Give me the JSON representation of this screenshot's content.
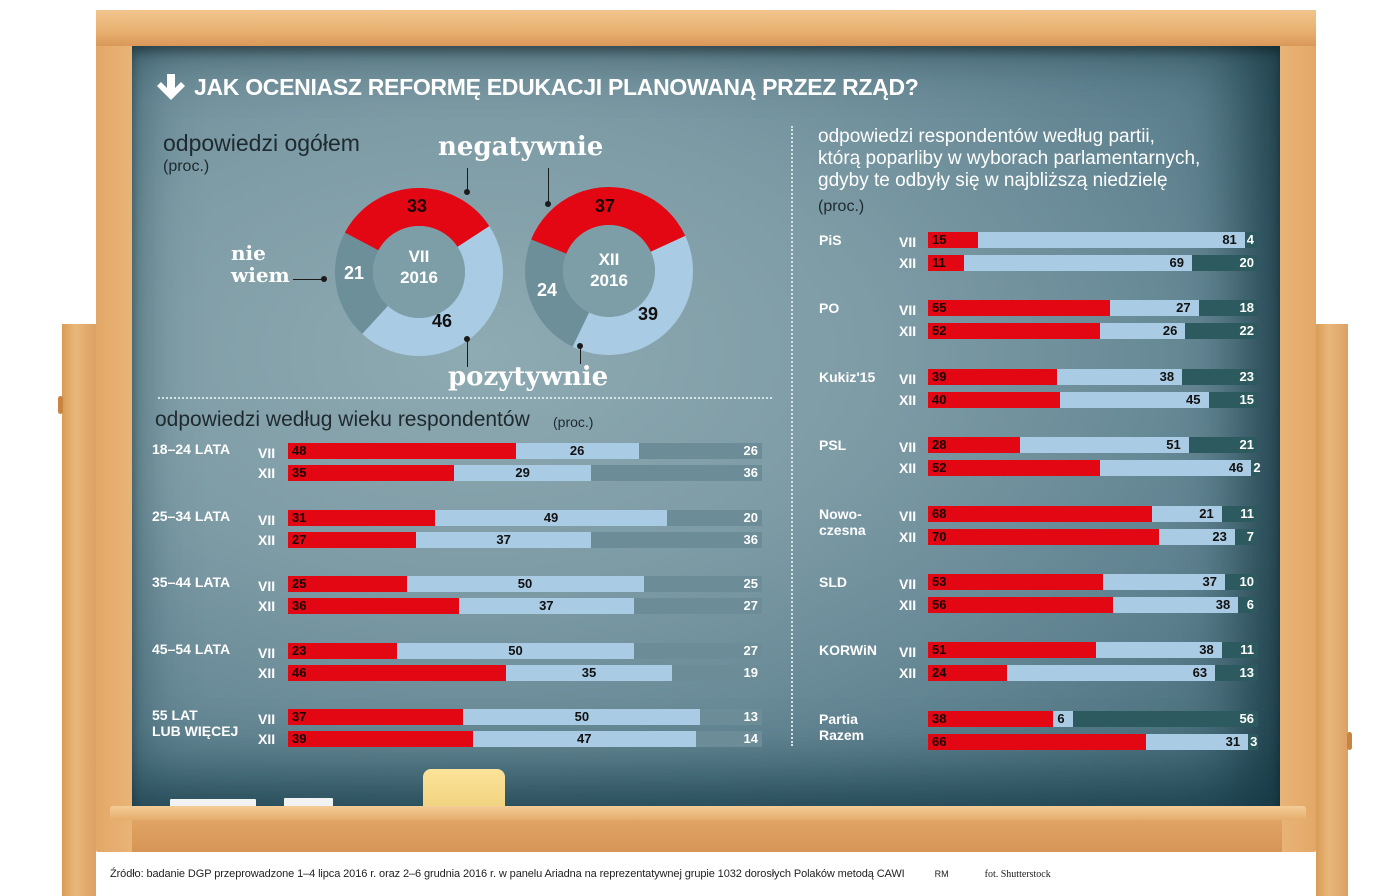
{
  "title": "JAK OCENIASZ REFORMĘ EDUKACJI PLANOWANĄ PRZEZ RZĄD?",
  "overall": {
    "heading": "odpowiedzi ogółem",
    "unit": "(proc.)",
    "callouts": {
      "negative": "negatywnie",
      "positive": "pozytywnie",
      "dont_know_1": "nie",
      "dont_know_2": "wiem"
    },
    "donuts": [
      {
        "period": "VII",
        "year": "2016",
        "negative": "33",
        "positive": "46",
        "dont_know": "21"
      },
      {
        "period": "XII",
        "year": "2016",
        "negative": "37",
        "positive": "39",
        "dont_know": "24"
      }
    ]
  },
  "age": {
    "heading": "odpowiedzi według wieku respondentów",
    "unit": "(proc.)",
    "groups": [
      {
        "label_1": "18–24 LATA",
        "label_2": "",
        "rows": [
          {
            "period": "VII",
            "negative": "48",
            "positive": "26",
            "dont_know": "26"
          },
          {
            "period": "XII",
            "negative": "35",
            "positive": "29",
            "dont_know": "36"
          }
        ]
      },
      {
        "label_1": "25–34 LATA",
        "label_2": "",
        "rows": [
          {
            "period": "VII",
            "negative": "31",
            "positive": "49",
            "dont_know": "20"
          },
          {
            "period": "XII",
            "negative": "27",
            "positive": "37",
            "dont_know": "36"
          }
        ]
      },
      {
        "label_1": "35–44 LATA",
        "label_2": "",
        "rows": [
          {
            "period": "VII",
            "negative": "25",
            "positive": "50",
            "dont_know": "25"
          },
          {
            "period": "XII",
            "negative": "36",
            "positive": "37",
            "dont_know": "27"
          }
        ]
      },
      {
        "label_1": "45–54 LATA",
        "label_2": "",
        "rows": [
          {
            "period": "VII",
            "negative": "23",
            "positive": "50",
            "dont_know": "27"
          },
          {
            "period": "XII",
            "negative": "46",
            "positive": "35",
            "dont_know": "19"
          }
        ]
      },
      {
        "label_1": "55 LAT",
        "label_2": "LUB WIĘCEJ",
        "rows": [
          {
            "period": "VII",
            "negative": "37",
            "positive": "50",
            "dont_know": "13"
          },
          {
            "period": "XII",
            "negative": "39",
            "positive": "47",
            "dont_know": "14"
          }
        ]
      }
    ]
  },
  "party": {
    "heading_1": "odpowiedzi respondentów według partii,",
    "heading_2": "którą poparliby w wyborach parlamentarnych,",
    "heading_3": "gdyby te odbyły się w najbliższą niedzielę",
    "unit": "(proc.)",
    "groups": [
      {
        "label_1": "PiS",
        "label_2": "",
        "rows": [
          {
            "period": "VII",
            "negative": "15",
            "positive": "81",
            "dont_know": "4"
          },
          {
            "period": "XII",
            "negative": "11",
            "positive": "69",
            "dont_know": "20"
          }
        ]
      },
      {
        "label_1": "PO",
        "label_2": "",
        "rows": [
          {
            "period": "VII",
            "negative": "55",
            "positive": "27",
            "dont_know": "18"
          },
          {
            "period": "XII",
            "negative": "52",
            "positive": "26",
            "dont_know": "22"
          }
        ]
      },
      {
        "label_1": "Kukiz'15",
        "label_2": "",
        "rows": [
          {
            "period": "VII",
            "negative": "39",
            "positive": "38",
            "dont_know": "23"
          },
          {
            "period": "XII",
            "negative": "40",
            "positive": "45",
            "dont_know": "15"
          }
        ]
      },
      {
        "label_1": "PSL",
        "label_2": "",
        "rows": [
          {
            "period": "VII",
            "negative": "28",
            "positive": "51",
            "dont_know": "21"
          },
          {
            "period": "XII",
            "negative": "52",
            "positive": "46",
            "dont_know": "2"
          }
        ]
      },
      {
        "label_1": "Nowo-",
        "label_2": "czesna",
        "rows": [
          {
            "period": "VII",
            "negative": "68",
            "positive": "21",
            "dont_know": "11"
          },
          {
            "period": "XII",
            "negative": "70",
            "positive": "23",
            "dont_know": "7"
          }
        ]
      },
      {
        "label_1": "SLD",
        "label_2": "",
        "rows": [
          {
            "period": "VII",
            "negative": "53",
            "positive": "37",
            "dont_know": "10"
          },
          {
            "period": "XII",
            "negative": "56",
            "positive": "38",
            "dont_know": "6"
          }
        ]
      },
      {
        "label_1": "KORWiN",
        "label_2": "",
        "rows": [
          {
            "period": "VII",
            "negative": "51",
            "positive": "38",
            "dont_know": "11"
          },
          {
            "period": "XII",
            "negative": "24",
            "positive": "63",
            "dont_know": "13"
          }
        ]
      },
      {
        "label_1": "Partia",
        "label_2": "Razem",
        "rows": [
          {
            "period": "",
            "negative": "38",
            "positive": "6",
            "dont_know": "56"
          },
          {
            "period": "",
            "negative": "66",
            "positive": "31",
            "dont_know": "3"
          }
        ]
      }
    ]
  },
  "footer": {
    "source": "Źródło: badanie DGP przeprowadzone  1–4 lipca 2016 r. oraz 2–6 grudnia 2016 r.  w panelu Ariadna  na reprezentatywnej  grupie 1032 dorosłych  Polaków metodą CAWI",
    "author": "RM",
    "photo": "fot. Shutterstock"
  },
  "colors": {
    "negative": "#e30613",
    "positive": "#a9cbe3",
    "dont_know_age": "#6c8d97",
    "dont_know_party": "#2c5a5e",
    "board": "#7e9ca6"
  },
  "chart_data": [
    {
      "type": "pie",
      "title": "odpowiedzi ogółem (proc.) — VII 2016",
      "categories": [
        "negatywnie",
        "pozytywnie",
        "nie wiem"
      ],
      "values": [
        33,
        46,
        21
      ]
    },
    {
      "type": "pie",
      "title": "odpowiedzi ogółem (proc.) — XII 2016",
      "categories": [
        "negatywnie",
        "pozytywnie",
        "nie wiem"
      ],
      "values": [
        37,
        39,
        24
      ]
    },
    {
      "type": "bar",
      "stacked": true,
      "orientation": "horizontal",
      "title": "odpowiedzi według wieku respondentów (proc.)",
      "categories": [
        "18–24 VII",
        "18–24 XII",
        "25–34 VII",
        "25–34 XII",
        "35–44 VII",
        "35–44 XII",
        "45–54 VII",
        "45–54 XII",
        "55+ VII",
        "55+ XII"
      ],
      "series": [
        {
          "name": "negatywnie",
          "values": [
            48,
            35,
            31,
            27,
            25,
            36,
            23,
            46,
            37,
            39
          ]
        },
        {
          "name": "pozytywnie",
          "values": [
            26,
            29,
            49,
            37,
            50,
            37,
            50,
            35,
            50,
            47
          ]
        },
        {
          "name": "nie wiem",
          "values": [
            26,
            36,
            20,
            36,
            25,
            27,
            27,
            19,
            13,
            14
          ]
        }
      ],
      "xlim": [
        0,
        100
      ]
    },
    {
      "type": "bar",
      "stacked": true,
      "orientation": "horizontal",
      "title": "odpowiedzi respondentów według partii (proc.)",
      "categories": [
        "PiS VII",
        "PiS XII",
        "PO VII",
        "PO XII",
        "Kukiz'15 VII",
        "Kukiz'15 XII",
        "PSL VII",
        "PSL XII",
        "Nowoczesna VII",
        "Nowoczesna XII",
        "SLD VII",
        "SLD XII",
        "KORWiN VII",
        "KORWiN XII",
        "Partia Razem VII",
        "Partia Razem XII"
      ],
      "series": [
        {
          "name": "negatywnie",
          "values": [
            15,
            11,
            55,
            52,
            39,
            40,
            28,
            52,
            68,
            70,
            53,
            56,
            51,
            24,
            38,
            66
          ]
        },
        {
          "name": "pozytywnie",
          "values": [
            81,
            69,
            27,
            26,
            38,
            45,
            51,
            46,
            21,
            23,
            37,
            38,
            38,
            63,
            6,
            31
          ]
        },
        {
          "name": "nie wiem",
          "values": [
            4,
            20,
            18,
            22,
            23,
            15,
            21,
            2,
            11,
            7,
            10,
            6,
            11,
            13,
            56,
            3
          ]
        }
      ],
      "xlim": [
        0,
        100
      ]
    }
  ]
}
